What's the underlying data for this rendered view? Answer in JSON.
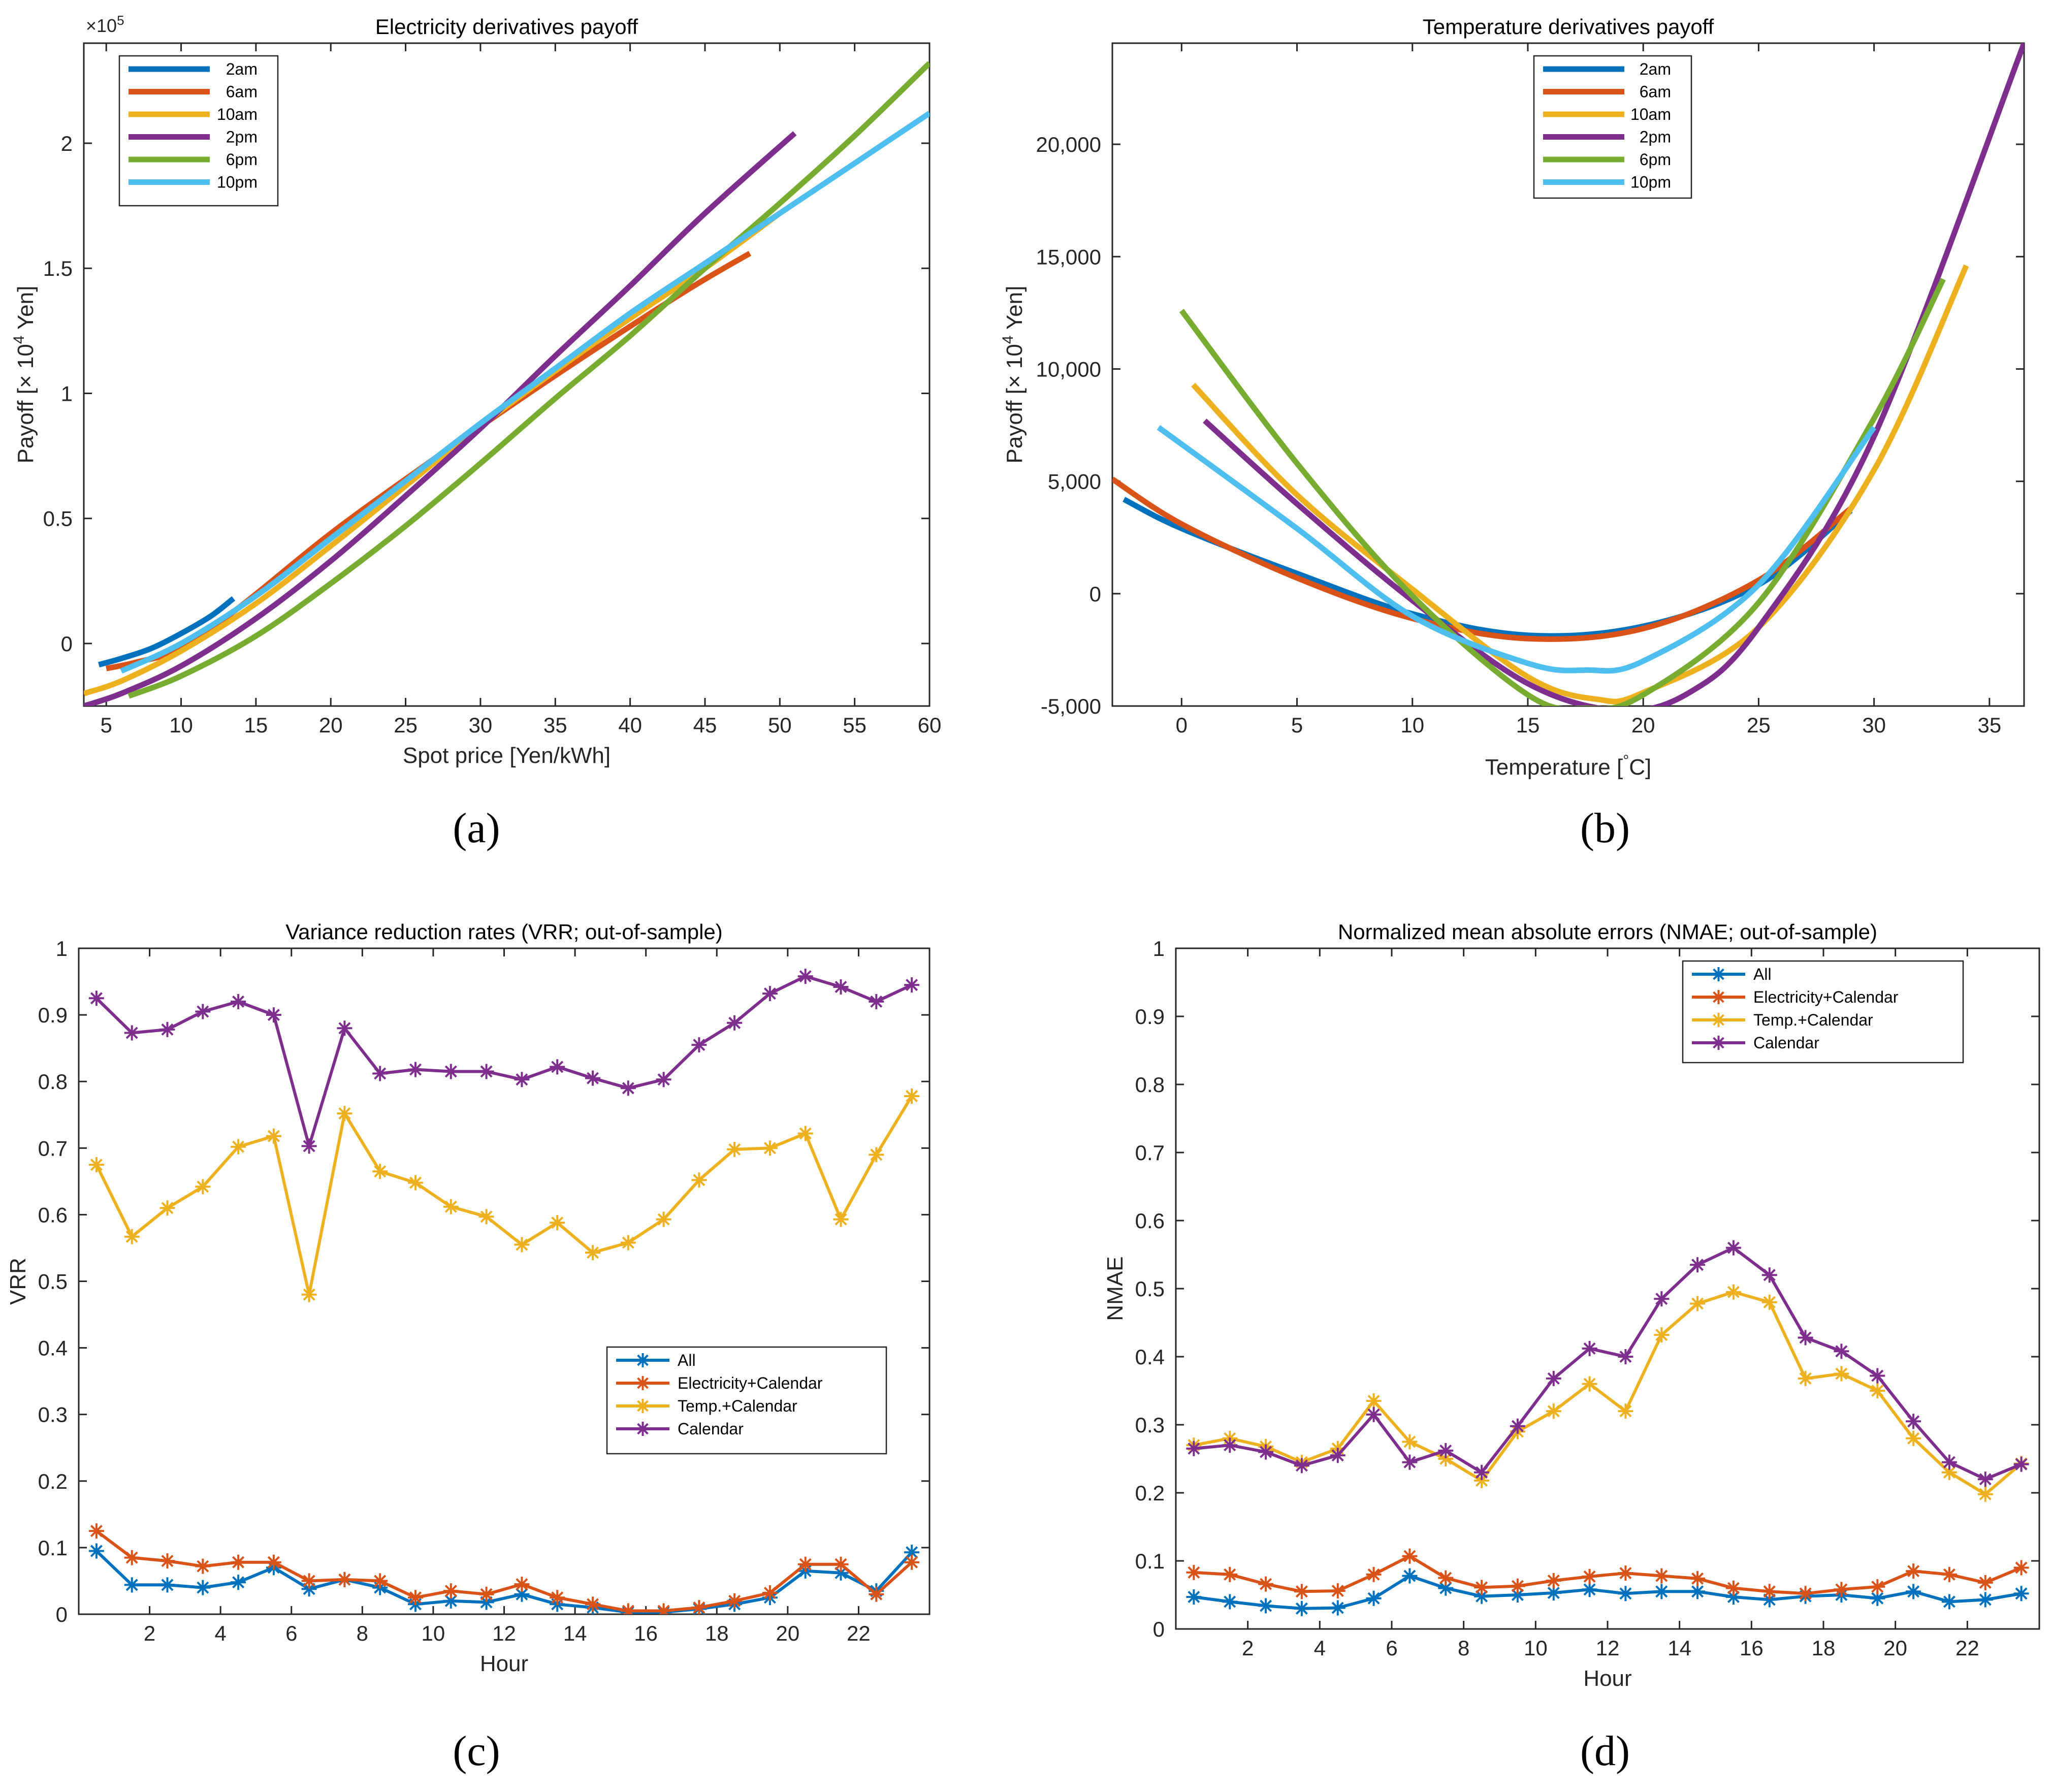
{
  "figure": {
    "panel_labels": [
      "(a)",
      "(b)",
      "(c)",
      "(d)"
    ]
  },
  "chart_data": [
    {
      "id": "a",
      "type": "line",
      "title": "Electricity derivatives payoff",
      "xlabel": "Spot price [Yen/kWh]",
      "ylabel_main": "Payoff [× 10",
      "ylabel_sup": "4",
      "ylabel_tail": " Yen]",
      "multiplier_base": "×10",
      "multiplier_exp": "5",
      "xlim": [
        3.5,
        60
      ],
      "ylim": [
        -0.25,
        2.4
      ],
      "xticks": [
        5,
        10,
        15,
        20,
        25,
        30,
        35,
        40,
        45,
        50,
        55,
        60
      ],
      "xtick_labels": [
        "5",
        "10",
        "15",
        "20",
        "25",
        "30",
        "35",
        "40",
        "45",
        "50",
        "55",
        "60"
      ],
      "yticks": [
        0,
        0.5,
        1,
        1.5,
        2
      ],
      "ytick_labels": [
        "0",
        "0.5",
        "1",
        "1.5",
        "2"
      ],
      "legend_position": "top-left",
      "series": [
        {
          "name": "2am",
          "color": "#0072BD",
          "x": [
            4.5,
            6,
            8,
            10,
            12,
            13.5
          ],
          "y": [
            -0.085,
            -0.06,
            -0.02,
            0.04,
            0.11,
            0.18
          ]
        },
        {
          "name": "6am",
          "color": "#D95319",
          "x": [
            5,
            7,
            10,
            14,
            20,
            26,
            32,
            38,
            44,
            48
          ],
          "y": [
            -0.1,
            -0.075,
            -0.02,
            0.15,
            0.44,
            0.7,
            0.95,
            1.19,
            1.42,
            1.56
          ]
        },
        {
          "name": "10am",
          "color": "#EDB120",
          "x": [
            3.5,
            6,
            10,
            15,
            20,
            25,
            30,
            35,
            40,
            45,
            50
          ],
          "y": [
            -0.2,
            -0.15,
            -0.03,
            0.16,
            0.39,
            0.63,
            0.87,
            1.09,
            1.3,
            1.5,
            1.72
          ]
        },
        {
          "name": "2pm",
          "color": "#7E2F8E",
          "x": [
            3.5,
            6,
            10,
            15,
            20,
            25,
            30,
            35,
            40,
            45,
            51
          ],
          "y": [
            -0.25,
            -0.2,
            -0.09,
            0.1,
            0.33,
            0.59,
            0.86,
            1.15,
            1.43,
            1.72,
            2.04
          ]
        },
        {
          "name": "6pm",
          "color": "#77AC30",
          "x": [
            6.5,
            10,
            15,
            20,
            25,
            30,
            35,
            40,
            45,
            50,
            55,
            60
          ],
          "y": [
            -0.21,
            -0.13,
            0.03,
            0.24,
            0.47,
            0.72,
            0.98,
            1.23,
            1.5,
            1.76,
            2.03,
            2.32
          ]
        },
        {
          "name": "10pm",
          "color": "#4DBEEE",
          "x": [
            6,
            10,
            15,
            20,
            25,
            30,
            35,
            40,
            45,
            50,
            55,
            60
          ],
          "y": [
            -0.11,
            0.0,
            0.19,
            0.42,
            0.65,
            0.88,
            1.1,
            1.32,
            1.52,
            1.72,
            1.92,
            2.12
          ]
        }
      ]
    },
    {
      "id": "b",
      "type": "line",
      "title": "Temperature derivatives payoff",
      "xlabel_main": "Temperature [",
      "xlabel_sup": "°",
      "xlabel_tail": "C]",
      "ylabel_main": "Payoff [× 10",
      "ylabel_sup": "4",
      "ylabel_tail": " Yen]",
      "xlim": [
        -3,
        36.5
      ],
      "ylim": [
        -5000,
        24500
      ],
      "xticks": [
        0,
        5,
        10,
        15,
        20,
        25,
        30,
        35
      ],
      "xtick_labels": [
        "0",
        "5",
        "10",
        "15",
        "20",
        "25",
        "30",
        "35"
      ],
      "yticks": [
        -5000,
        0,
        5000,
        10000,
        15000,
        20000
      ],
      "ytick_labels": [
        "-5,000",
        "0",
        "5,000",
        "10,000",
        "15,000",
        "20,000"
      ],
      "legend_position": "top",
      "series": [
        {
          "name": "2am",
          "color": "#0072BD",
          "x": [
            -2.5,
            0,
            5,
            10,
            15,
            20,
            25,
            29
          ],
          "y": [
            4200,
            2900,
            900,
            -900,
            -1850,
            -1450,
            400,
            3700
          ]
        },
        {
          "name": "6am",
          "color": "#D95319",
          "x": [
            -3,
            0,
            5,
            10,
            15,
            20,
            25,
            29
          ],
          "y": [
            5100,
            3100,
            700,
            -1100,
            -2000,
            -1550,
            600,
            3800
          ]
        },
        {
          "name": "10am",
          "color": "#EDB120",
          "x": [
            0.5,
            5,
            10,
            15,
            18,
            20,
            25,
            30,
            34
          ],
          "y": [
            9300,
            4400,
            200,
            -3700,
            -4700,
            -4400,
            -1500,
            5500,
            14600
          ]
        },
        {
          "name": "2pm",
          "color": "#7E2F8E",
          "x": [
            1,
            5,
            10,
            15,
            19,
            22,
            25,
            30,
            36.5
          ],
          "y": [
            7700,
            4000,
            -300,
            -4000,
            -5200,
            -4400,
            -1500,
            7000,
            24500
          ]
        },
        {
          "name": "6pm",
          "color": "#77AC30",
          "x": [
            0,
            5,
            10,
            15,
            17.5,
            20,
            25,
            30,
            33
          ],
          "y": [
            12600,
            5800,
            -100,
            -4500,
            -5100,
            -4500,
            -400,
            7800,
            14000
          ]
        },
        {
          "name": "10pm",
          "color": "#4DBEEE",
          "x": [
            -1,
            5,
            10,
            15,
            17.5,
            20,
            25,
            30
          ],
          "y": [
            7400,
            2900,
            -1000,
            -3100,
            -3400,
            -3000,
            400,
            7400
          ]
        }
      ]
    },
    {
      "id": "c",
      "type": "line",
      "title": "Variance reduction rates (VRR; out-of-sample)",
      "xlabel": "Hour",
      "ylabel": "VRR",
      "xlim": [
        0,
        24
      ],
      "ylim": [
        0,
        1
      ],
      "xticks": [
        2,
        4,
        6,
        8,
        10,
        12,
        14,
        16,
        18,
        20,
        22
      ],
      "xtick_labels": [
        "2",
        "4",
        "6",
        "8",
        "10",
        "12",
        "14",
        "16",
        "18",
        "20",
        "22"
      ],
      "yticks": [
        0,
        0.1,
        0.2,
        0.3,
        0.4,
        0.5,
        0.6,
        0.7,
        0.8,
        0.9,
        1
      ],
      "ytick_labels": [
        "0",
        "0.1",
        "0.2",
        "0.3",
        "0.4",
        "0.5",
        "0.6",
        "0.7",
        "0.8",
        "0.9",
        "1"
      ],
      "legend_position": "center-right",
      "x": [
        0.5,
        1.5,
        2.5,
        3.5,
        4.5,
        5.5,
        6.5,
        7.5,
        8.5,
        9.5,
        10.5,
        11.5,
        12.5,
        13.5,
        14.5,
        15.5,
        16.5,
        17.5,
        18.5,
        19.5,
        20.5,
        21.5,
        22.5,
        23.5
      ],
      "series": [
        {
          "name": "All",
          "color": "#0072BD",
          "values": [
            0.095,
            0.044,
            0.044,
            0.04,
            0.048,
            0.07,
            0.038,
            0.052,
            0.04,
            0.015,
            0.02,
            0.018,
            0.03,
            0.015,
            0.01,
            0.003,
            0.003,
            0.008,
            0.015,
            0.025,
            0.065,
            0.062,
            0.035,
            0.093
          ]
        },
        {
          "name": "Electricity+Calendar",
          "color": "#D95319",
          "values": [
            0.125,
            0.085,
            0.08,
            0.072,
            0.078,
            0.078,
            0.05,
            0.052,
            0.05,
            0.025,
            0.035,
            0.03,
            0.045,
            0.025,
            0.015,
            0.005,
            0.005,
            0.01,
            0.02,
            0.032,
            0.075,
            0.075,
            0.03,
            0.078
          ]
        },
        {
          "name": "Temp.+Calendar",
          "color": "#EDB120",
          "values": [
            0.675,
            0.567,
            0.61,
            0.642,
            0.702,
            0.718,
            0.48,
            0.752,
            0.665,
            0.648,
            0.612,
            0.597,
            0.555,
            0.588,
            0.543,
            0.558,
            0.593,
            0.652,
            0.698,
            0.7,
            0.722,
            0.593,
            0.69,
            0.778
          ]
        },
        {
          "name": "Calendar",
          "color": "#7E2F8E",
          "values": [
            0.925,
            0.873,
            0.878,
            0.905,
            0.92,
            0.9,
            0.703,
            0.88,
            0.812,
            0.818,
            0.815,
            0.815,
            0.803,
            0.822,
            0.805,
            0.79,
            0.803,
            0.855,
            0.888,
            0.932,
            0.958,
            0.942,
            0.92,
            0.945
          ]
        }
      ]
    },
    {
      "id": "d",
      "type": "line",
      "title": "Normalized mean absolute errors (NMAE; out-of-sample)",
      "xlabel": "Hour",
      "ylabel": "NMAE",
      "xlim": [
        0,
        24
      ],
      "ylim": [
        0,
        1
      ],
      "xticks": [
        2,
        4,
        6,
        8,
        10,
        12,
        14,
        16,
        18,
        20,
        22
      ],
      "xtick_labels": [
        "2",
        "4",
        "6",
        "8",
        "10",
        "12",
        "14",
        "16",
        "18",
        "20",
        "22"
      ],
      "yticks": [
        0,
        0.1,
        0.2,
        0.3,
        0.4,
        0.5,
        0.6,
        0.7,
        0.8,
        0.9,
        1
      ],
      "ytick_labels": [
        "0",
        "0.1",
        "0.2",
        "0.3",
        "0.4",
        "0.5",
        "0.6",
        "0.7",
        "0.8",
        "0.9",
        "1"
      ],
      "legend_position": "top-left",
      "x": [
        0.5,
        1.5,
        2.5,
        3.5,
        4.5,
        5.5,
        6.5,
        7.5,
        8.5,
        9.5,
        10.5,
        11.5,
        12.5,
        13.5,
        14.5,
        15.5,
        16.5,
        17.5,
        18.5,
        19.5,
        20.5,
        21.5,
        22.5,
        23.5
      ],
      "series": [
        {
          "name": "All",
          "color": "#0072BD",
          "values": [
            0.047,
            0.04,
            0.034,
            0.03,
            0.031,
            0.045,
            0.078,
            0.06,
            0.048,
            0.05,
            0.053,
            0.058,
            0.052,
            0.055,
            0.055,
            0.047,
            0.043,
            0.048,
            0.05,
            0.045,
            0.055,
            0.04,
            0.043,
            0.052
          ]
        },
        {
          "name": "Electricity+Calendar",
          "color": "#D95319",
          "values": [
            0.083,
            0.08,
            0.066,
            0.055,
            0.056,
            0.08,
            0.107,
            0.075,
            0.061,
            0.063,
            0.071,
            0.077,
            0.082,
            0.078,
            0.074,
            0.06,
            0.055,
            0.052,
            0.058,
            0.062,
            0.085,
            0.08,
            0.068,
            0.09
          ]
        },
        {
          "name": "Temp.+Calendar",
          "color": "#EDB120",
          "values": [
            0.27,
            0.28,
            0.268,
            0.245,
            0.265,
            0.335,
            0.275,
            0.25,
            0.218,
            0.29,
            0.32,
            0.36,
            0.32,
            0.432,
            0.478,
            0.495,
            0.48,
            0.368,
            0.375,
            0.35,
            0.28,
            0.23,
            0.198,
            0.243
          ]
        },
        {
          "name": "Calendar",
          "color": "#7E2F8E",
          "values": [
            0.265,
            0.27,
            0.26,
            0.24,
            0.255,
            0.315,
            0.245,
            0.262,
            0.23,
            0.298,
            0.368,
            0.412,
            0.4,
            0.485,
            0.535,
            0.56,
            0.52,
            0.428,
            0.408,
            0.372,
            0.305,
            0.245,
            0.22,
            0.242
          ]
        }
      ]
    }
  ]
}
